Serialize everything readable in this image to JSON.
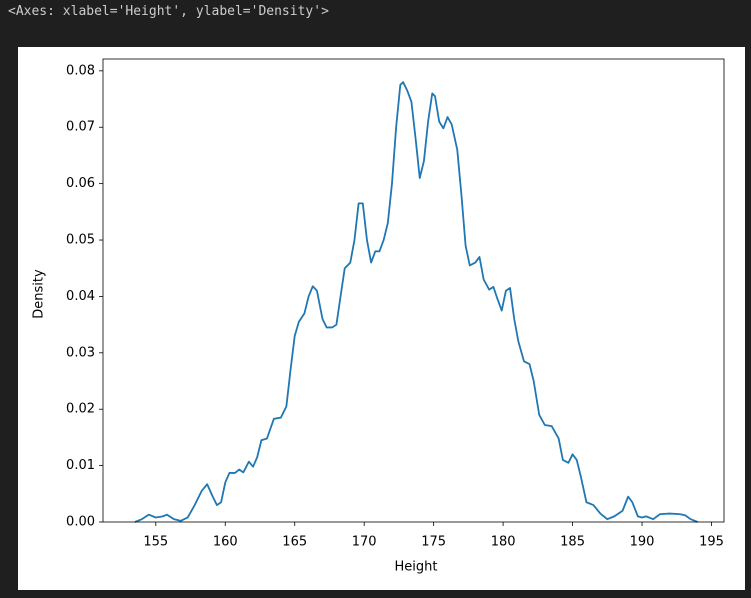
{
  "output_text": "<Axes: xlabel='Height', ylabel='Density'>",
  "chart_data": {
    "type": "line",
    "xlabel": "Height",
    "ylabel": "Density",
    "color": "#1f77b4",
    "xlim": [
      151.2,
      195.9
    ],
    "ylim": [
      0,
      0.0821
    ],
    "xticks": [
      155,
      160,
      165,
      170,
      175,
      180,
      185,
      190,
      195
    ],
    "yticks": [
      {
        "value": 0,
        "label": "0.00"
      },
      0.01,
      0.02,
      0.03,
      0.04,
      0.05,
      0.06,
      0.07,
      0.08
    ],
    "x": [
      153.5,
      154.0,
      154.5,
      155.0,
      155.5,
      155.8,
      156.3,
      156.8,
      157.3,
      157.8,
      158.3,
      158.7,
      159.1,
      159.4,
      159.7,
      160.0,
      160.3,
      160.7,
      161.0,
      161.3,
      161.7,
      162.0,
      162.3,
      162.6,
      163.0,
      163.5,
      164.0,
      164.4,
      164.7,
      165.0,
      165.3,
      165.7,
      166.0,
      166.3,
      166.6,
      167.0,
      167.3,
      167.7,
      168.0,
      168.3,
      168.6,
      169.0,
      169.3,
      169.6,
      169.9,
      170.2,
      170.5,
      170.8,
      171.1,
      171.4,
      171.7,
      172.0,
      172.3,
      172.6,
      172.8,
      173.1,
      173.4,
      173.7,
      174.0,
      174.3,
      174.6,
      174.9,
      175.1,
      175.4,
      175.7,
      176.0,
      176.3,
      176.7,
      177.0,
      177.3,
      177.6,
      178.0,
      178.3,
      178.6,
      179.0,
      179.3,
      179.6,
      179.9,
      180.2,
      180.5,
      180.8,
      181.1,
      181.5,
      181.9,
      182.2,
      182.6,
      183.0,
      183.5,
      184.0,
      184.3,
      184.7,
      185.0,
      185.3,
      185.6,
      186.0,
      186.5,
      187.0,
      187.5,
      188.0,
      188.6,
      189.0,
      189.3,
      189.7,
      190.0,
      190.3,
      190.8,
      191.3,
      192.0,
      192.7,
      193.1,
      193.5,
      194.0
    ],
    "values": [
      0.0,
      0.0005,
      0.0013,
      0.0008,
      0.001,
      0.0013,
      0.0005,
      0.0002,
      0.0008,
      0.003,
      0.0055,
      0.0067,
      0.0045,
      0.003,
      0.0035,
      0.007,
      0.0087,
      0.0087,
      0.0093,
      0.0088,
      0.0107,
      0.0098,
      0.0115,
      0.0145,
      0.0148,
      0.0183,
      0.0185,
      0.0205,
      0.027,
      0.033,
      0.0355,
      0.037,
      0.04,
      0.0418,
      0.041,
      0.036,
      0.0345,
      0.0345,
      0.035,
      0.04,
      0.045,
      0.046,
      0.05,
      0.0565,
      0.0565,
      0.05,
      0.046,
      0.048,
      0.048,
      0.05,
      0.053,
      0.06,
      0.07,
      0.0775,
      0.078,
      0.0765,
      0.0745,
      0.068,
      0.061,
      0.064,
      0.071,
      0.076,
      0.0755,
      0.071,
      0.0698,
      0.0718,
      0.0705,
      0.066,
      0.058,
      0.049,
      0.0455,
      0.046,
      0.047,
      0.043,
      0.0412,
      0.0417,
      0.0395,
      0.0375,
      0.041,
      0.0415,
      0.036,
      0.032,
      0.0285,
      0.028,
      0.025,
      0.019,
      0.0172,
      0.017,
      0.0148,
      0.011,
      0.0105,
      0.012,
      0.011,
      0.008,
      0.0035,
      0.003,
      0.0015,
      0.0005,
      0.001,
      0.002,
      0.0045,
      0.0035,
      0.001,
      0.0008,
      0.001,
      0.0005,
      0.0014,
      0.0015,
      0.0014,
      0.0012,
      0.0005,
      0.0
    ]
  }
}
